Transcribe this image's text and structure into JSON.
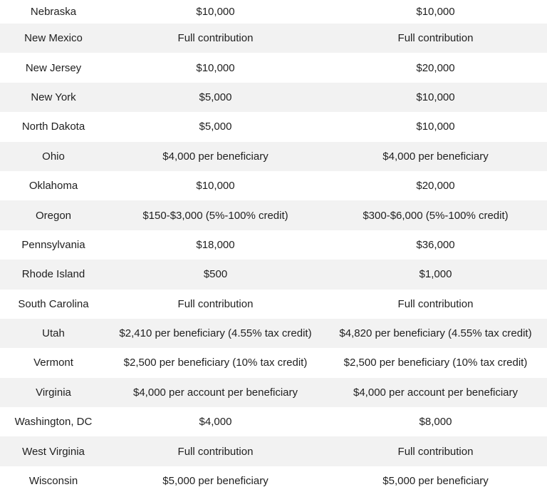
{
  "colors": {
    "background": "#ffffff",
    "zebra_row": "#f2f2f2",
    "text": "#1f1f1f"
  },
  "table": {
    "headers_visible": false,
    "rows": [
      {
        "state": "Nebraska",
        "value1": "$10,000",
        "value2": "$10,000"
      },
      {
        "state": "New Mexico",
        "value1": "Full contribution",
        "value2": "Full contribution"
      },
      {
        "state": "New Jersey",
        "value1": "$10,000",
        "value2": "$20,000"
      },
      {
        "state": "New York",
        "value1": "$5,000",
        "value2": "$10,000"
      },
      {
        "state": "North Dakota",
        "value1": "$5,000",
        "value2": "$10,000"
      },
      {
        "state": "Ohio",
        "value1": "$4,000 per beneficiary",
        "value2": "$4,000 per beneficiary"
      },
      {
        "state": "Oklahoma",
        "value1": "$10,000",
        "value2": "$20,000"
      },
      {
        "state": "Oregon",
        "value1": "$150-$3,000 (5%-100% credit)",
        "value2": "$300-$6,000 (5%-100% credit)"
      },
      {
        "state": "Pennsylvania",
        "value1": "$18,000",
        "value2": "$36,000"
      },
      {
        "state": "Rhode Island",
        "value1": "$500",
        "value2": "$1,000"
      },
      {
        "state": "South Carolina",
        "value1": "Full contribution",
        "value2": "Full contribution"
      },
      {
        "state": "Utah",
        "value1": "$2,410 per beneficiary (4.55% tax credit)",
        "value2": "$4,820 per beneficiary (4.55% tax credit)"
      },
      {
        "state": "Vermont",
        "value1": "$2,500 per beneficiary (10% tax credit)",
        "value2": "$2,500 per beneficiary (10% tax credit)"
      },
      {
        "state": "Virginia",
        "value1": "$4,000 per account per beneficiary",
        "value2": "$4,000 per account per beneficiary"
      },
      {
        "state": "Washington, DC",
        "value1": "$4,000",
        "value2": "$8,000"
      },
      {
        "state": "West Virginia",
        "value1": "Full contribution",
        "value2": "Full contribution"
      },
      {
        "state": "Wisconsin",
        "value1": "$5,000 per beneficiary",
        "value2": "$5,000 per beneficiary"
      }
    ]
  },
  "chart_data": {
    "type": "table",
    "headers_visible": false,
    "rows": [
      [
        "Nebraska",
        "$10,000",
        "$10,000"
      ],
      [
        "New Mexico",
        "Full contribution",
        "Full contribution"
      ],
      [
        "New Jersey",
        "$10,000",
        "$20,000"
      ],
      [
        "New York",
        "$5,000",
        "$10,000"
      ],
      [
        "North Dakota",
        "$5,000",
        "$10,000"
      ],
      [
        "Ohio",
        "$4,000 per beneficiary",
        "$4,000 per beneficiary"
      ],
      [
        "Oklahoma",
        "$10,000",
        "$20,000"
      ],
      [
        "Oregon",
        "$150-$3,000 (5%-100% credit)",
        "$300-$6,000 (5%-100% credit)"
      ],
      [
        "Pennsylvania",
        "$18,000",
        "$36,000"
      ],
      [
        "Rhode Island",
        "$500",
        "$1,000"
      ],
      [
        "South Carolina",
        "Full contribution",
        "Full contribution"
      ],
      [
        "Utah",
        "$2,410 per beneficiary (4.55% tax credit)",
        "$4,820 per beneficiary (4.55% tax credit)"
      ],
      [
        "Vermont",
        "$2,500 per beneficiary (10% tax credit)",
        "$2,500 per beneficiary (10% tax credit)"
      ],
      [
        "Virginia",
        "$4,000 per account per beneficiary",
        "$4,000 per account per beneficiary"
      ],
      [
        "Washington, DC",
        "$4,000",
        "$8,000"
      ],
      [
        "West Virginia",
        "Full contribution",
        "Full contribution"
      ],
      [
        "Wisconsin",
        "$5,000 per beneficiary",
        "$5,000 per beneficiary"
      ]
    ],
    "layout": {
      "zebra_striping": true,
      "zebra_color": "#f2f2f2",
      "alignment": "center",
      "first_row_clipped_at_top": true
    }
  }
}
